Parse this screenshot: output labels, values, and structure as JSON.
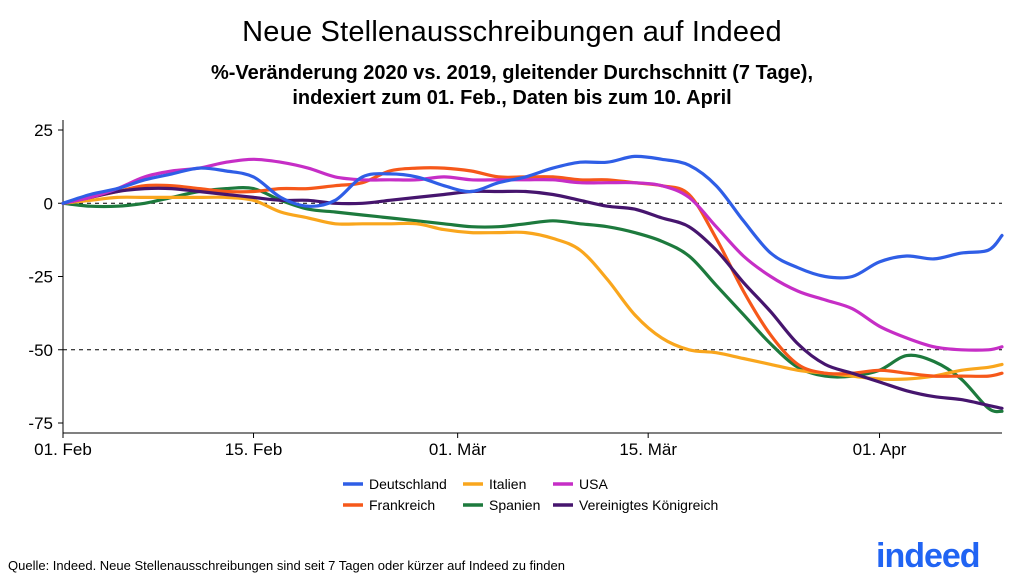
{
  "header": {
    "title": "Neue Stellenausschreibungen auf Indeed",
    "subtitle_line1": "%-Veränderung 2020 vs. 2019, gleitender Durchschnitt (7 Tage),",
    "subtitle_line2": "indexiert zum 01. Feb., Daten bis zum 10. April"
  },
  "footer": {
    "source": "Quelle: Indeed. Neue Stellenausschreibungen sind seit 7 Tagen oder kürzer auf Indeed zu finden",
    "logo_text": "indeed"
  },
  "chart_data": {
    "type": "line",
    "x_start": "2020-02-01",
    "x_end": "2020-04-10",
    "x_tick_labels": [
      "01. Feb",
      "15. Feb",
      "01. Mär",
      "15. Mär",
      "01. Apr"
    ],
    "x_tick_dates": [
      "2020-02-01",
      "2020-02-15",
      "2020-03-01",
      "2020-03-15",
      "2020-04-01"
    ],
    "ylim": [
      -75,
      25
    ],
    "y_ticks": [
      25,
      0,
      -25,
      -50,
      -75
    ],
    "reference_lines": [
      0,
      -50
    ],
    "grid": false,
    "legend_position": "bottom",
    "x": [
      "2020-02-01",
      "2020-02-03",
      "2020-02-05",
      "2020-02-07",
      "2020-02-09",
      "2020-02-11",
      "2020-02-13",
      "2020-02-15",
      "2020-02-17",
      "2020-02-19",
      "2020-02-21",
      "2020-02-23",
      "2020-02-25",
      "2020-02-27",
      "2020-02-29",
      "2020-03-02",
      "2020-03-04",
      "2020-03-06",
      "2020-03-08",
      "2020-03-10",
      "2020-03-12",
      "2020-03-14",
      "2020-03-16",
      "2020-03-18",
      "2020-03-20",
      "2020-03-22",
      "2020-03-24",
      "2020-03-26",
      "2020-03-28",
      "2020-03-30",
      "2020-04-01",
      "2020-04-03",
      "2020-04-05",
      "2020-04-07",
      "2020-04-09",
      "2020-04-10"
    ],
    "series": [
      {
        "name": "Deutschland",
        "color": "#2f5ee6",
        "values": [
          0,
          3,
          5,
          8,
          10,
          12,
          11,
          9,
          2,
          -1,
          1,
          9,
          10,
          9,
          6,
          4,
          7,
          9,
          12,
          14,
          14,
          16,
          15,
          13,
          6,
          -6,
          -17,
          -22,
          -25,
          -25,
          -20,
          -18,
          -19,
          -17,
          -16,
          -11
        ]
      },
      {
        "name": "Frankreich",
        "color": "#f6581a",
        "values": [
          0,
          2,
          4,
          6,
          6,
          5,
          4,
          4,
          5,
          5,
          6,
          7,
          11,
          12,
          12,
          11,
          9,
          9,
          9,
          8,
          8,
          7,
          6,
          3,
          -12,
          -30,
          -45,
          -55,
          -58,
          -58,
          -57,
          -58,
          -59,
          -59,
          -59,
          -58
        ]
      },
      {
        "name": "Italien",
        "color": "#f9a61d",
        "values": [
          0,
          1,
          2,
          2,
          2,
          2,
          2,
          1,
          -3,
          -5,
          -7,
          -7,
          -7,
          -7,
          -9,
          -10,
          -10,
          -10,
          -12,
          -16,
          -26,
          -38,
          -46,
          -50,
          -51,
          -53,
          -55,
          -57,
          -58,
          -59,
          -60,
          -60,
          -59,
          -57,
          -56,
          -55
        ]
      },
      {
        "name": "Spanien",
        "color": "#1d7a3d",
        "values": [
          0,
          -1,
          -1,
          0,
          2,
          4,
          5,
          5,
          1,
          -2,
          -3,
          -4,
          -5,
          -6,
          -7,
          -8,
          -8,
          -7,
          -6,
          -7,
          -8,
          -10,
          -13,
          -18,
          -28,
          -38,
          -48,
          -56,
          -59,
          -59,
          -57,
          -52,
          -54,
          -60,
          -70,
          -71
        ]
      },
      {
        "name": "USA",
        "color": "#c62ec6",
        "values": [
          0,
          2,
          5,
          9,
          11,
          12,
          14,
          15,
          14,
          12,
          9,
          8,
          8,
          8,
          9,
          8,
          8,
          8,
          8,
          7,
          7,
          7,
          6,
          2,
          -8,
          -18,
          -25,
          -30,
          -33,
          -36,
          -42,
          -46,
          -49,
          -50,
          -50,
          -49
        ]
      },
      {
        "name": "Vereinigtes Königreich",
        "color": "#46156e",
        "values": [
          0,
          2,
          4,
          5,
          5,
          4,
          3,
          2,
          1,
          1,
          0,
          0,
          1,
          2,
          3,
          4,
          4,
          4,
          3,
          1,
          -1,
          -2,
          -5,
          -8,
          -16,
          -27,
          -37,
          -48,
          -55,
          -58,
          -61,
          -64,
          -66,
          -67,
          -69,
          -70
        ]
      }
    ]
  }
}
